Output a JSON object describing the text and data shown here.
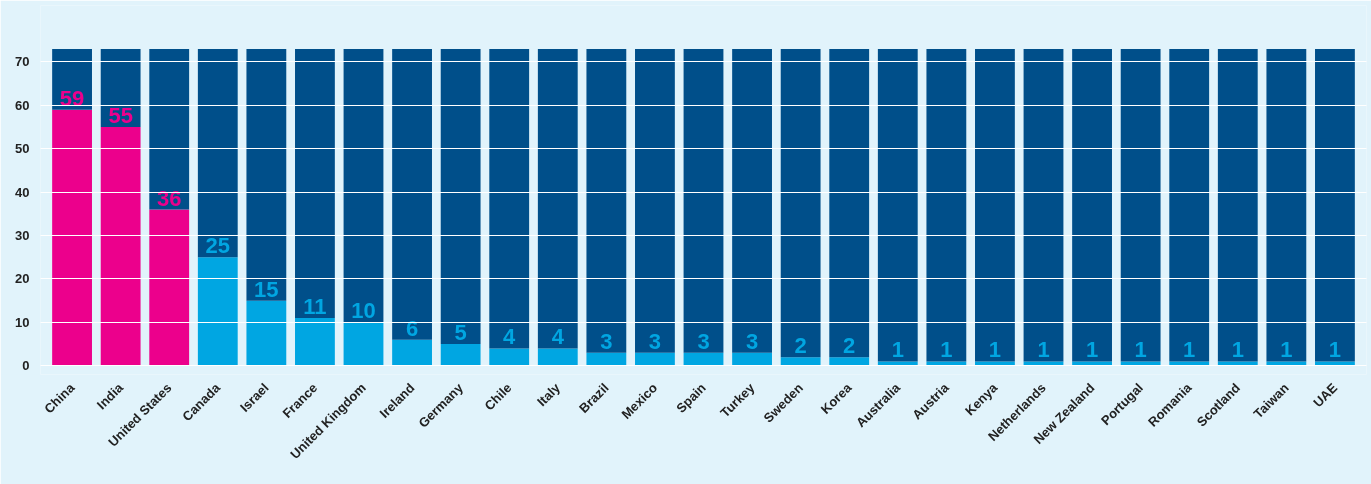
{
  "chart_data": {
    "type": "bar",
    "stacked": true,
    "categories": [
      "China",
      "India",
      "United States",
      "Canada",
      "Israel",
      "France",
      "United Kingdom",
      "Ireland",
      "Germany",
      "Chile",
      "Italy",
      "Brazil",
      "Mexico",
      "Spain",
      "Turkey",
      "Sweden",
      "Korea",
      "Australia",
      "Austria",
      "Kenya",
      "Netherlands",
      "New Zealand",
      "Portugal",
      "Romania",
      "Scotland",
      "Taiwan",
      "UAE"
    ],
    "series": [
      {
        "colors": [
          "#ec008c",
          "#ec008c",
          "#ec008c",
          "#00a6e2",
          "#00a6e2",
          "#00a6e2",
          "#00a6e2",
          "#00a6e2",
          "#00a6e2",
          "#00a6e2",
          "#00a6e2",
          "#00a6e2",
          "#00a6e2",
          "#00a6e2",
          "#00a6e2",
          "#00a6e2",
          "#00a6e2",
          "#00a6e2",
          "#00a6e2",
          "#00a6e2",
          "#00a6e2",
          "#00a6e2",
          "#00a6e2",
          "#00a6e2",
          "#00a6e2",
          "#00a6e2",
          "#00a6e2"
        ],
        "values": [
          59,
          55,
          36,
          25,
          15,
          11,
          10,
          6,
          5,
          4,
          4,
          3,
          3,
          3,
          3,
          2,
          2,
          1,
          1,
          1,
          1,
          1,
          1,
          1,
          1,
          1,
          1
        ],
        "value_labels": [
          "59",
          "55",
          "36",
          "25",
          "15",
          "11",
          "10",
          "6",
          "5",
          "4",
          "4",
          "3",
          "3",
          "3",
          "3",
          "2",
          "2",
          "1",
          "1",
          "1",
          "1",
          "1",
          "1",
          "1",
          "1",
          "1",
          "1"
        ]
      },
      {
        "color": "#004f8a",
        "values": [
          14,
          18,
          37,
          48,
          58,
          62,
          63,
          67,
          68,
          69,
          69,
          70,
          70,
          70,
          70,
          71,
          71,
          72,
          72,
          72,
          72,
          72,
          72,
          72,
          72,
          72,
          72
        ]
      }
    ],
    "ylim": [
      -2,
      83
    ],
    "yticks": [
      0,
      10,
      20,
      30,
      40,
      50,
      60,
      70
    ],
    "grid": "y"
  }
}
